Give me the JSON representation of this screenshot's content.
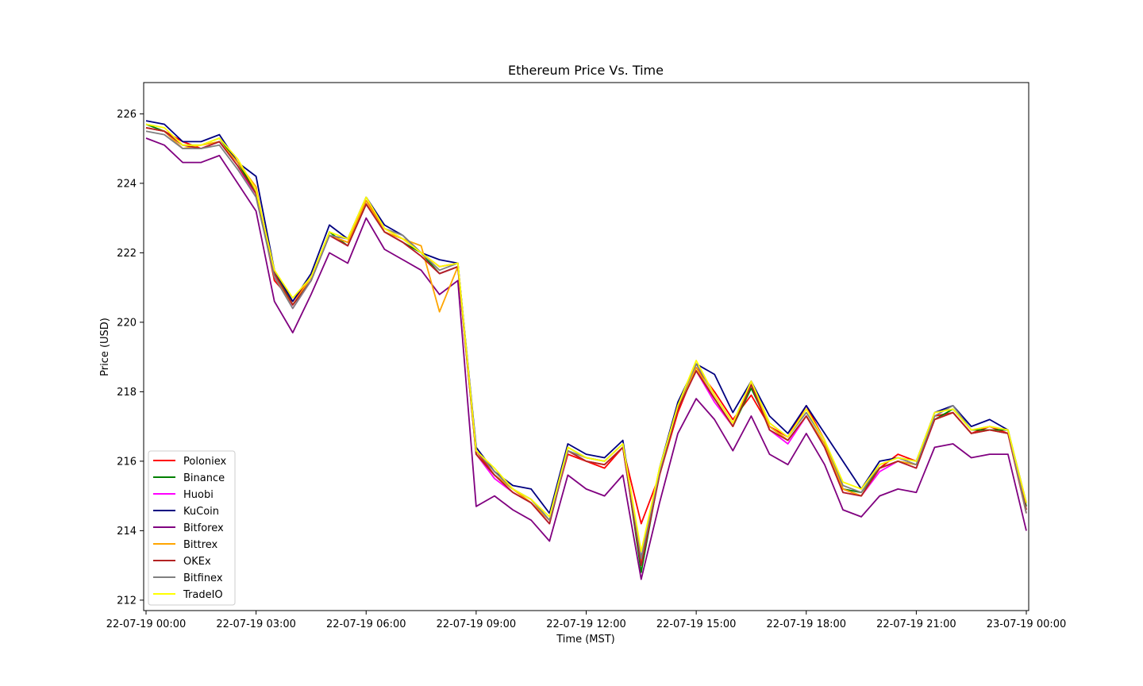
{
  "chart_data": {
    "type": "line",
    "title": "Ethereum Price Vs. Time",
    "xlabel": "Time (MST)",
    "ylabel": "Price (USD)",
    "xlim": [
      "22-07-19 00:00",
      "23-07-19 00:00"
    ],
    "ylim": [
      211.7,
      226.9
    ],
    "grid": false,
    "legend_position": "lower-left",
    "x_ticks": [
      "22-07-19 00:00",
      "22-07-19 03:00",
      "22-07-19 06:00",
      "22-07-19 09:00",
      "22-07-19 12:00",
      "22-07-19 15:00",
      "22-07-19 18:00",
      "22-07-19 21:00",
      "23-07-19 00:00"
    ],
    "y_ticks": [
      212,
      214,
      216,
      218,
      220,
      222,
      224,
      226
    ],
    "x": [
      "22-07-19 00:00",
      "22-07-19 00:30",
      "22-07-19 01:00",
      "22-07-19 01:30",
      "22-07-19 02:00",
      "22-07-19 02:30",
      "22-07-19 03:00",
      "22-07-19 03:30",
      "22-07-19 04:00",
      "22-07-19 04:30",
      "22-07-19 05:00",
      "22-07-19 05:30",
      "22-07-19 06:00",
      "22-07-19 06:30",
      "22-07-19 07:00",
      "22-07-19 07:30",
      "22-07-19 08:00",
      "22-07-19 08:30",
      "22-07-19 09:00",
      "22-07-19 09:30",
      "22-07-19 10:00",
      "22-07-19 10:30",
      "22-07-19 11:00",
      "22-07-19 11:30",
      "22-07-19 12:00",
      "22-07-19 12:30",
      "22-07-19 13:00",
      "22-07-19 13:30",
      "22-07-19 14:00",
      "22-07-19 14:30",
      "22-07-19 15:00",
      "22-07-19 15:30",
      "22-07-19 16:00",
      "22-07-19 16:30",
      "22-07-19 17:00",
      "22-07-19 17:30",
      "22-07-19 18:00",
      "22-07-19 18:30",
      "22-07-19 19:00",
      "22-07-19 19:30",
      "22-07-19 20:00",
      "22-07-19 20:30",
      "22-07-19 21:00",
      "22-07-19 21:30",
      "22-07-19 22:00",
      "22-07-19 22:30",
      "22-07-19 23:00",
      "22-07-19 23:30",
      "23-07-19 00:00"
    ],
    "series": [
      {
        "name": "Poloniex",
        "color": "#ff0000",
        "values": [
          225.6,
          225.5,
          225.2,
          225.0,
          225.2,
          224.6,
          223.8,
          221.2,
          220.6,
          221.3,
          222.5,
          222.3,
          223.5,
          222.7,
          222.4,
          222.0,
          221.6,
          221.7,
          216.3,
          215.6,
          215.2,
          214.8,
          214.3,
          216.2,
          216.0,
          215.8,
          216.4,
          214.2,
          215.6,
          217.4,
          218.7,
          218.0,
          217.2,
          217.9,
          217.0,
          216.7,
          217.6,
          216.6,
          215.2,
          215.0,
          215.8,
          216.2,
          216.0,
          217.3,
          217.4,
          216.8,
          217.0,
          216.8,
          214.5
        ]
      },
      {
        "name": "Binance",
        "color": "#008000",
        "values": [
          225.7,
          225.5,
          225.1,
          225.1,
          225.3,
          224.6,
          223.7,
          221.5,
          220.5,
          221.2,
          222.6,
          222.2,
          223.4,
          222.6,
          222.3,
          222.0,
          221.4,
          221.6,
          216.2,
          215.6,
          215.2,
          214.9,
          214.3,
          216.4,
          216.1,
          216.0,
          216.5,
          212.8,
          215.7,
          217.6,
          218.6,
          217.8,
          217.0,
          218.1,
          217.0,
          216.6,
          217.3,
          216.5,
          215.2,
          215.1,
          215.8,
          216.0,
          215.9,
          217.2,
          217.5,
          216.9,
          216.9,
          216.9,
          214.7
        ]
      },
      {
        "name": "Huobi",
        "color": "#ff00ff",
        "values": [
          225.6,
          225.5,
          225.0,
          225.0,
          225.2,
          224.5,
          223.6,
          221.4,
          220.4,
          221.2,
          222.5,
          222.2,
          223.4,
          222.6,
          222.3,
          221.9,
          221.4,
          221.6,
          216.2,
          215.5,
          215.1,
          214.8,
          214.2,
          216.3,
          216.0,
          215.9,
          216.4,
          213.0,
          215.6,
          217.5,
          218.6,
          217.7,
          217.0,
          218.3,
          216.9,
          216.5,
          217.3,
          216.4,
          215.1,
          215.0,
          215.7,
          216.0,
          215.8,
          217.2,
          217.4,
          216.8,
          216.9,
          216.8,
          214.6
        ]
      },
      {
        "name": "KuCoin",
        "color": "#000080",
        "values": [
          225.8,
          225.7,
          225.2,
          225.2,
          225.4,
          224.6,
          224.2,
          221.5,
          220.6,
          221.4,
          222.8,
          222.4,
          223.6,
          222.8,
          222.5,
          222.0,
          221.8,
          221.7,
          216.4,
          215.7,
          215.3,
          215.2,
          214.5,
          216.5,
          216.2,
          216.1,
          216.6,
          213.2,
          215.8,
          217.7,
          218.8,
          218.5,
          217.4,
          218.3,
          217.3,
          216.8,
          217.6,
          216.8,
          216.0,
          215.2,
          216.0,
          216.1,
          216.0,
          217.4,
          217.6,
          217.0,
          217.2,
          216.9,
          214.8
        ]
      },
      {
        "name": "Bitforex",
        "color": "#800080",
        "values": [
          225.3,
          225.1,
          224.6,
          224.6,
          224.8,
          224.0,
          223.2,
          220.6,
          219.7,
          220.8,
          222.0,
          221.7,
          223.0,
          222.1,
          221.8,
          221.5,
          220.8,
          221.2,
          214.7,
          215.0,
          214.6,
          214.3,
          213.7,
          215.6,
          215.2,
          215.0,
          215.6,
          212.6,
          214.8,
          216.8,
          217.8,
          217.2,
          216.3,
          217.3,
          216.2,
          215.9,
          216.8,
          215.9,
          214.6,
          214.4,
          215.0,
          215.2,
          215.1,
          216.4,
          216.5,
          216.1,
          216.2,
          216.2,
          214.0
        ]
      },
      {
        "name": "Bittrex",
        "color": "#ffa500",
        "values": [
          225.6,
          225.5,
          225.0,
          225.1,
          225.2,
          224.6,
          223.9,
          221.3,
          220.5,
          221.3,
          222.5,
          222.3,
          223.5,
          222.6,
          222.4,
          222.2,
          220.3,
          221.6,
          216.2,
          215.6,
          215.2,
          214.8,
          214.3,
          216.3,
          216.0,
          215.9,
          216.4,
          213.1,
          215.6,
          217.5,
          218.7,
          217.8,
          217.0,
          218.2,
          217.0,
          216.6,
          217.3,
          216.5,
          215.2,
          215.0,
          215.8,
          216.0,
          215.9,
          217.2,
          217.4,
          216.8,
          216.9,
          216.8,
          214.6
        ]
      },
      {
        "name": "OKEx",
        "color": "#b22222",
        "values": [
          225.6,
          225.5,
          225.1,
          225.0,
          225.2,
          224.5,
          223.7,
          221.4,
          220.5,
          221.2,
          222.5,
          222.2,
          223.4,
          222.6,
          222.3,
          221.9,
          221.4,
          221.6,
          216.2,
          215.6,
          215.1,
          214.8,
          214.2,
          216.3,
          216.0,
          215.9,
          216.4,
          213.0,
          215.6,
          217.5,
          218.6,
          217.8,
          217.0,
          218.2,
          216.9,
          216.6,
          217.3,
          216.4,
          215.1,
          215.0,
          215.8,
          216.0,
          215.8,
          217.2,
          217.4,
          216.8,
          216.9,
          216.8,
          214.6
        ]
      },
      {
        "name": "Bitfinex",
        "color": "#808080",
        "values": [
          225.5,
          225.4,
          225.0,
          225.0,
          225.1,
          224.4,
          223.6,
          221.3,
          220.4,
          221.2,
          222.5,
          222.4,
          223.6,
          222.7,
          222.5,
          222.0,
          221.5,
          221.7,
          216.3,
          215.7,
          215.2,
          214.9,
          214.3,
          216.3,
          216.1,
          216.0,
          216.5,
          213.2,
          215.7,
          217.6,
          218.8,
          217.9,
          217.1,
          218.3,
          217.1,
          216.7,
          217.4,
          216.6,
          215.3,
          215.1,
          215.9,
          216.1,
          215.9,
          217.3,
          217.6,
          216.9,
          217.0,
          216.9,
          214.5
        ]
      },
      {
        "name": "TradeIO",
        "color": "#ffff00",
        "values": [
          225.7,
          225.6,
          225.1,
          225.1,
          225.3,
          224.7,
          223.8,
          221.5,
          220.7,
          221.3,
          222.6,
          222.4,
          223.6,
          222.7,
          222.4,
          222.0,
          221.6,
          221.7,
          216.3,
          215.8,
          215.2,
          214.9,
          214.4,
          216.4,
          216.1,
          216.0,
          216.5,
          213.4,
          215.8,
          217.6,
          218.9,
          217.9,
          217.1,
          218.3,
          217.1,
          216.7,
          217.5,
          216.6,
          215.4,
          215.2,
          215.9,
          216.1,
          216.0,
          217.4,
          217.5,
          216.9,
          217.0,
          216.9,
          214.8
        ]
      }
    ]
  }
}
